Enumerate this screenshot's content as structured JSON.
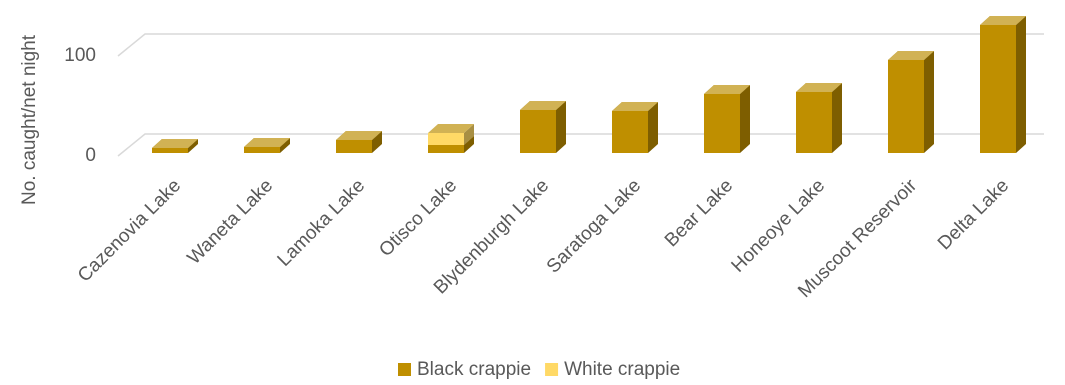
{
  "chart_data": {
    "type": "bar3d",
    "ylabel": "No. caught/net night",
    "categories": [
      "Cazenovia Lake",
      "Waneta Lake",
      "Lamoka Lake",
      "Otisco Lake",
      "Blydenburgh Lake",
      "Saratoga Lake",
      "Bear Lake",
      "Honeoye Lake",
      "Muscoot Reservoir",
      "Delta Lake"
    ],
    "series": [
      {
        "name": "Black crappie",
        "color": "#bf8f00",
        "values": [
          5,
          6,
          13,
          8,
          43,
          42,
          59,
          61,
          93,
          128
        ]
      },
      {
        "name": "White crappie",
        "color": "#ffd966",
        "values": [
          0,
          0,
          0,
          12,
          0,
          0,
          0,
          0,
          0,
          0
        ]
      }
    ],
    "stacked": true,
    "ylim": [
      0,
      130
    ],
    "yticks": [
      0,
      100
    ],
    "grid": true,
    "legend": "bottom"
  }
}
